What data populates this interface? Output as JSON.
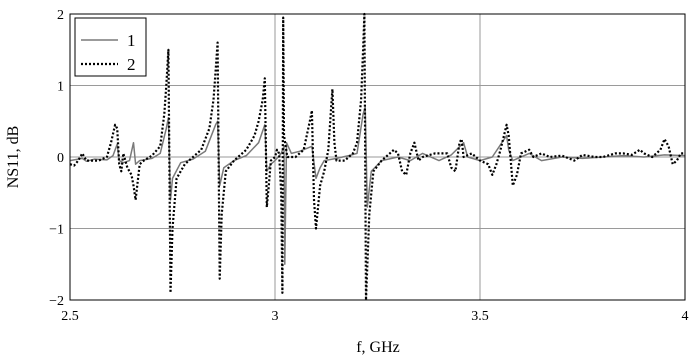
{
  "chart_data": {
    "type": "line",
    "title": "",
    "xlabel": "f, GHz",
    "ylabel": "NS11, dB",
    "xlim": [
      2.5,
      4.0
    ],
    "ylim": [
      -2,
      2
    ],
    "x_ticks": [
      2.5,
      3,
      3.5,
      4
    ],
    "x_tick_labels": [
      "2.5",
      "3",
      "3.5",
      "4"
    ],
    "y_ticks": [
      -2,
      -1,
      0,
      1,
      2
    ],
    "y_tick_labels": [
      "−2",
      "−1",
      "0",
      "1",
      "2"
    ],
    "grid": true,
    "legend_position": "top-left",
    "series": [
      {
        "name": "1",
        "color": "#7a7a7a",
        "style": "solid",
        "points": [
          [
            2.5,
            -0.05
          ],
          [
            2.53,
            -0.02
          ],
          [
            2.54,
            -0.06
          ],
          [
            2.56,
            -0.03
          ],
          [
            2.59,
            -0.04
          ],
          [
            2.605,
            0.02
          ],
          [
            2.615,
            0.18
          ],
          [
            2.62,
            -0.05
          ],
          [
            2.63,
            -0.08
          ],
          [
            2.645,
            -0.05
          ],
          [
            2.655,
            0.2
          ],
          [
            2.66,
            -0.1
          ],
          [
            2.67,
            -0.05
          ],
          [
            2.7,
            -0.02
          ],
          [
            2.72,
            0.05
          ],
          [
            2.735,
            0.4
          ],
          [
            2.74,
            0.55
          ],
          [
            2.745,
            -0.6
          ],
          [
            2.75,
            -0.3
          ],
          [
            2.77,
            -0.08
          ],
          [
            2.8,
            -0.03
          ],
          [
            2.83,
            0.08
          ],
          [
            2.855,
            0.45
          ],
          [
            2.86,
            0.5
          ],
          [
            2.865,
            -0.4
          ],
          [
            2.875,
            -0.15
          ],
          [
            2.9,
            -0.05
          ],
          [
            2.93,
            0.02
          ],
          [
            2.96,
            0.2
          ],
          [
            2.975,
            0.45
          ],
          [
            2.98,
            -0.2
          ],
          [
            2.99,
            -0.1
          ],
          [
            3.0,
            -0.05
          ],
          [
            3.015,
            0.05
          ],
          [
            3.022,
            0.15
          ],
          [
            3.024,
            -1.5
          ],
          [
            3.028,
            0.2
          ],
          [
            3.04,
            0.05
          ],
          [
            3.06,
            0.08
          ],
          [
            3.09,
            0.15
          ],
          [
            3.1,
            -0.3
          ],
          [
            3.11,
            -0.15
          ],
          [
            3.12,
            -0.05
          ],
          [
            3.15,
            -0.02
          ],
          [
            3.18,
            0.02
          ],
          [
            3.2,
            0.05
          ],
          [
            3.215,
            0.6
          ],
          [
            3.22,
            0.7
          ],
          [
            3.225,
            -0.7
          ],
          [
            3.235,
            -0.2
          ],
          [
            3.26,
            -0.05
          ],
          [
            3.3,
            0.0
          ],
          [
            3.33,
            -0.05
          ],
          [
            3.36,
            0.05
          ],
          [
            3.4,
            -0.05
          ],
          [
            3.43,
            0.03
          ],
          [
            3.46,
            0.2
          ],
          [
            3.47,
            0.0
          ],
          [
            3.5,
            -0.05
          ],
          [
            3.53,
            0.0
          ],
          [
            3.565,
            0.3
          ],
          [
            3.57,
            0.1
          ],
          [
            3.58,
            -0.05
          ],
          [
            3.62,
            0.05
          ],
          [
            3.65,
            -0.05
          ],
          [
            3.7,
            0.0
          ],
          [
            3.75,
            -0.02
          ],
          [
            3.8,
            0.0
          ],
          [
            3.85,
            0.02
          ],
          [
            3.9,
            0.0
          ],
          [
            3.95,
            0.03
          ],
          [
            4.0,
            0.02
          ]
        ]
      },
      {
        "name": "2",
        "color": "#000000",
        "style": "dotted",
        "points": [
          [
            2.5,
            -0.1
          ],
          [
            2.51,
            -0.12
          ],
          [
            2.52,
            -0.05
          ],
          [
            2.53,
            0.05
          ],
          [
            2.54,
            -0.05
          ],
          [
            2.55,
            -0.05
          ],
          [
            2.57,
            -0.05
          ],
          [
            2.59,
            0.0
          ],
          [
            2.6,
            0.2
          ],
          [
            2.61,
            0.45
          ],
          [
            2.615,
            0.4
          ],
          [
            2.62,
            -0.1
          ],
          [
            2.625,
            -0.2
          ],
          [
            2.63,
            0.05
          ],
          [
            2.64,
            -0.15
          ],
          [
            2.65,
            -0.25
          ],
          [
            2.655,
            -0.4
          ],
          [
            2.66,
            -0.6
          ],
          [
            2.67,
            -0.1
          ],
          [
            2.68,
            -0.05
          ],
          [
            2.7,
            0.02
          ],
          [
            2.72,
            0.15
          ],
          [
            2.73,
            0.6
          ],
          [
            2.735,
            1.0
          ],
          [
            2.74,
            1.5
          ],
          [
            2.745,
            -1.9
          ],
          [
            2.75,
            -1.0
          ],
          [
            2.76,
            -0.3
          ],
          [
            2.78,
            -0.1
          ],
          [
            2.8,
            0.0
          ],
          [
            2.82,
            0.1
          ],
          [
            2.84,
            0.4
          ],
          [
            2.85,
            0.8
          ],
          [
            2.855,
            1.2
          ],
          [
            2.86,
            1.6
          ],
          [
            2.865,
            -1.7
          ],
          [
            2.87,
            -0.8
          ],
          [
            2.88,
            -0.2
          ],
          [
            2.9,
            -0.05
          ],
          [
            2.93,
            0.1
          ],
          [
            2.95,
            0.3
          ],
          [
            2.96,
            0.5
          ],
          [
            2.97,
            0.8
          ],
          [
            2.975,
            1.1
          ],
          [
            2.98,
            -0.7
          ],
          [
            2.985,
            -0.4
          ],
          [
            2.99,
            -0.05
          ],
          [
            3.0,
            0.0
          ],
          [
            3.005,
            0.1
          ],
          [
            3.01,
            0.05
          ],
          [
            3.015,
            -0.5
          ],
          [
            3.018,
            -1.9
          ],
          [
            3.02,
            1.95
          ],
          [
            3.022,
            0.3
          ],
          [
            3.03,
            0.0
          ],
          [
            3.05,
            0.0
          ],
          [
            3.07,
            0.1
          ],
          [
            3.085,
            0.5
          ],
          [
            3.09,
            0.65
          ],
          [
            3.095,
            -0.6
          ],
          [
            3.1,
            -1.0
          ],
          [
            3.11,
            -0.4
          ],
          [
            3.12,
            -0.2
          ],
          [
            3.13,
            0.1
          ],
          [
            3.14,
            0.95
          ],
          [
            3.145,
            0.2
          ],
          [
            3.15,
            -0.05
          ],
          [
            3.17,
            -0.05
          ],
          [
            3.19,
            0.05
          ],
          [
            3.2,
            0.2
          ],
          [
            3.21,
            0.8
          ],
          [
            3.215,
            1.5
          ],
          [
            3.218,
            2.0
          ],
          [
            3.222,
            -2.0
          ],
          [
            3.23,
            -0.8
          ],
          [
            3.24,
            -0.2
          ],
          [
            3.26,
            -0.05
          ],
          [
            3.28,
            0.05
          ],
          [
            3.29,
            0.1
          ],
          [
            3.3,
            0.05
          ],
          [
            3.31,
            -0.2
          ],
          [
            3.32,
            -0.25
          ],
          [
            3.33,
            0.05
          ],
          [
            3.34,
            0.2
          ],
          [
            3.35,
            -0.05
          ],
          [
            3.36,
            0.0
          ],
          [
            3.39,
            0.05
          ],
          [
            3.42,
            0.05
          ],
          [
            3.43,
            -0.15
          ],
          [
            3.44,
            -0.2
          ],
          [
            3.45,
            0.2
          ],
          [
            3.455,
            0.25
          ],
          [
            3.46,
            0.0
          ],
          [
            3.48,
            0.05
          ],
          [
            3.5,
            -0.05
          ],
          [
            3.52,
            -0.1
          ],
          [
            3.53,
            -0.25
          ],
          [
            3.54,
            -0.1
          ],
          [
            3.55,
            0.1
          ],
          [
            3.565,
            0.45
          ],
          [
            3.57,
            0.3
          ],
          [
            3.58,
            -0.4
          ],
          [
            3.59,
            -0.25
          ],
          [
            3.6,
            0.05
          ],
          [
            3.62,
            0.1
          ],
          [
            3.63,
            0.0
          ],
          [
            3.65,
            0.05
          ],
          [
            3.67,
            0.0
          ],
          [
            3.7,
            0.02
          ],
          [
            3.73,
            -0.05
          ],
          [
            3.75,
            0.03
          ],
          [
            3.78,
            0.0
          ],
          [
            3.8,
            0.0
          ],
          [
            3.83,
            0.05
          ],
          [
            3.85,
            0.05
          ],
          [
            3.87,
            0.03
          ],
          [
            3.89,
            0.1
          ],
          [
            3.9,
            0.05
          ],
          [
            3.92,
            0.0
          ],
          [
            3.94,
            0.1
          ],
          [
            3.95,
            0.25
          ],
          [
            3.96,
            0.15
          ],
          [
            3.97,
            -0.1
          ],
          [
            3.98,
            -0.05
          ],
          [
            3.99,
            0.05
          ],
          [
            4.0,
            0.05
          ]
        ]
      }
    ]
  }
}
